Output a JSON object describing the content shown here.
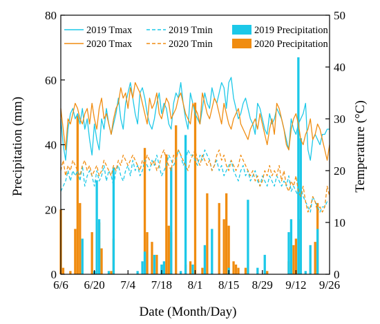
{
  "chart_data": {
    "type": "bar+line",
    "xlabel": "Date (Month/Day)",
    "ylabel_left": "Precipitation (mm)",
    "ylabel_right": "Temperature (°C)",
    "ylim_left": [
      0,
      80
    ],
    "ylim_right": [
      0,
      50
    ],
    "yticks_left": [
      "0",
      "20",
      "40",
      "60",
      "80"
    ],
    "yticks_right": [
      "0",
      "10",
      "20",
      "30",
      "40",
      "50"
    ],
    "xlim": [
      0,
      112
    ],
    "xticks": [
      {
        "label": "6/6",
        "day": 0
      },
      {
        "label": "6/20",
        "day": 14
      },
      {
        "label": "7/4",
        "day": 28
      },
      {
        "label": "7/18",
        "day": 42
      },
      {
        "label": "8/1",
        "day": 56
      },
      {
        "label": "8/15",
        "day": 70
      },
      {
        "label": "8/29",
        "day": 84
      },
      {
        "label": "9/12",
        "day": 98
      },
      {
        "label": "9/26",
        "day": 112
      }
    ],
    "grid": false,
    "legend_position": "top",
    "colors": {
      "2019": "#1cc8e8",
      "2020": "#f08c10"
    },
    "legend": [
      {
        "label": "2019 Tmax",
        "kind": "line",
        "year": "2019",
        "dash": false
      },
      {
        "label": "2019 Tmin",
        "kind": "line",
        "year": "2019",
        "dash": true
      },
      {
        "label": "2019 Precipitation",
        "kind": "bar",
        "year": "2019"
      },
      {
        "label": "2020 Tmax",
        "kind": "line",
        "year": "2020",
        "dash": false
      },
      {
        "label": "2020 Tmin",
        "kind": "line",
        "year": "2020",
        "dash": true
      },
      {
        "label": "2020 Precipitation",
        "kind": "bar",
        "year": "2020"
      }
    ],
    "precipitation_2019": [
      {
        "day": 9,
        "value": 11
      },
      {
        "day": 14,
        "value": 1
      },
      {
        "day": 15,
        "value": 29
      },
      {
        "day": 16,
        "value": 17
      },
      {
        "day": 20,
        "value": 1
      },
      {
        "day": 22,
        "value": 33
      },
      {
        "day": 32,
        "value": 1
      },
      {
        "day": 34,
        "value": 4
      },
      {
        "day": 35,
        "value": 7
      },
      {
        "day": 39,
        "value": 6
      },
      {
        "day": 42,
        "value": 3
      },
      {
        "day": 43,
        "value": 4
      },
      {
        "day": 46,
        "value": 33
      },
      {
        "day": 50,
        "value": 1
      },
      {
        "day": 52,
        "value": 43
      },
      {
        "day": 55,
        "value": 3
      },
      {
        "day": 60,
        "value": 9
      },
      {
        "day": 63,
        "value": 14
      },
      {
        "day": 70,
        "value": 2
      },
      {
        "day": 78,
        "value": 23
      },
      {
        "day": 82,
        "value": 2
      },
      {
        "day": 85,
        "value": 6
      },
      {
        "day": 95,
        "value": 13
      },
      {
        "day": 96,
        "value": 17
      },
      {
        "day": 99,
        "value": 67
      },
      {
        "day": 100,
        "value": 42
      },
      {
        "day": 102,
        "value": 1
      },
      {
        "day": 104,
        "value": 9
      },
      {
        "day": 107,
        "value": 14
      }
    ],
    "precipitation_2020": [
      {
        "day": 0,
        "value": 20
      },
      {
        "day": 1,
        "value": 2
      },
      {
        "day": 4,
        "value": 1
      },
      {
        "day": 6,
        "value": 14
      },
      {
        "day": 7,
        "value": 49
      },
      {
        "day": 8,
        "value": 22
      },
      {
        "day": 13,
        "value": 13
      },
      {
        "day": 16,
        "value": 16
      },
      {
        "day": 17,
        "value": 8
      },
      {
        "day": 21,
        "value": 1
      },
      {
        "day": 22,
        "value": 11
      },
      {
        "day": 35,
        "value": 39
      },
      {
        "day": 36,
        "value": 13
      },
      {
        "day": 38,
        "value": 10
      },
      {
        "day": 40,
        "value": 6
      },
      {
        "day": 43,
        "value": 3
      },
      {
        "day": 44,
        "value": 37
      },
      {
        "day": 45,
        "value": 15
      },
      {
        "day": 46,
        "value": 13
      },
      {
        "day": 48,
        "value": 46
      },
      {
        "day": 52,
        "value": 3
      },
      {
        "day": 54,
        "value": 4
      },
      {
        "day": 56,
        "value": 53
      },
      {
        "day": 59,
        "value": 2
      },
      {
        "day": 61,
        "value": 25
      },
      {
        "day": 66,
        "value": 22
      },
      {
        "day": 68,
        "value": 17
      },
      {
        "day": 69,
        "value": 25
      },
      {
        "day": 70,
        "value": 15
      },
      {
        "day": 72,
        "value": 4
      },
      {
        "day": 73,
        "value": 3
      },
      {
        "day": 74,
        "value": 2
      },
      {
        "day": 77,
        "value": 2
      },
      {
        "day": 86,
        "value": 1
      },
      {
        "day": 95,
        "value": 4
      },
      {
        "day": 97,
        "value": 9
      },
      {
        "day": 98,
        "value": 11
      },
      {
        "day": 100,
        "value": 17
      },
      {
        "day": 106,
        "value": 10
      },
      {
        "day": 107,
        "value": 22
      }
    ],
    "tmax_2019": [
      30,
      25,
      22,
      28,
      31,
      32,
      30,
      31,
      29,
      32,
      28,
      30,
      26,
      23,
      29,
      26,
      24,
      30,
      28,
      32,
      29,
      27,
      29,
      31,
      34,
      30,
      28,
      33,
      35,
      37,
      34,
      31,
      29,
      35,
      36,
      34,
      31,
      29,
      28,
      30,
      33,
      35,
      31,
      33,
      32,
      29,
      28,
      33,
      35,
      34,
      37,
      33,
      30,
      28,
      35,
      33,
      31,
      30,
      29,
      32,
      35,
      33,
      32,
      36,
      34,
      33,
      35,
      37,
      36,
      32,
      37,
      38,
      34,
      32,
      30,
      31,
      33,
      34,
      32,
      30,
      29,
      27,
      33,
      32,
      30,
      28,
      27,
      31,
      29,
      30,
      32,
      31,
      30,
      28,
      26,
      24,
      30,
      28,
      27,
      29,
      30,
      31,
      33,
      24,
      22,
      26,
      27,
      26,
      25,
      27,
      27,
      28,
      28
    ],
    "tmin_2019": [
      16,
      17,
      18,
      20,
      18,
      20,
      19,
      20,
      18,
      21,
      17,
      19,
      20,
      19,
      17,
      20,
      18,
      19,
      21,
      18,
      20,
      19,
      17,
      20,
      21,
      19,
      18,
      20,
      21,
      19,
      22,
      20,
      21,
      19,
      20,
      22,
      21,
      20,
      22,
      21,
      23,
      21,
      19,
      20,
      21,
      23,
      22,
      21,
      22,
      24,
      23,
      21,
      22,
      24,
      23,
      23,
      22,
      21,
      23,
      22,
      24,
      23,
      22,
      20,
      21,
      22,
      20,
      21,
      19,
      20,
      21,
      22,
      20,
      19,
      18,
      20,
      21,
      19,
      20,
      18,
      19,
      20,
      18,
      17,
      19,
      18,
      17,
      19,
      18,
      17,
      19,
      18,
      17,
      18,
      17,
      19,
      16,
      17,
      16,
      15,
      17,
      15,
      14,
      13,
      12,
      15,
      14,
      13,
      12,
      13,
      13,
      14,
      14
    ],
    "tmax_2020": [
      32,
      28,
      24,
      30,
      29,
      31,
      33,
      32,
      30,
      29,
      31,
      32,
      29,
      33,
      30,
      28,
      32,
      34,
      30,
      31,
      29,
      27,
      30,
      32,
      33,
      36,
      34,
      35,
      32,
      36,
      34,
      37,
      36,
      35,
      33,
      31,
      29,
      34,
      32,
      33,
      35,
      31,
      30,
      32,
      34,
      33,
      30,
      31,
      32,
      34,
      35,
      33,
      31,
      30,
      29,
      33,
      32,
      31,
      29,
      35,
      33,
      31,
      30,
      32,
      34,
      33,
      31,
      29,
      33,
      31,
      29,
      28,
      30,
      31,
      32,
      29,
      28,
      27,
      26,
      28,
      29,
      30,
      28,
      31,
      29,
      27,
      25,
      28,
      30,
      27,
      33,
      32,
      30,
      28,
      25,
      24,
      28,
      30,
      31,
      29,
      26,
      25,
      27,
      28,
      30,
      26,
      27,
      29,
      28,
      26,
      24,
      22,
      25
    ],
    "tmin_2020": [
      20,
      22,
      19,
      21,
      20,
      22,
      21,
      20,
      19,
      21,
      22,
      20,
      21,
      19,
      20,
      21,
      19,
      20,
      22,
      21,
      20,
      19,
      21,
      20,
      22,
      21,
      23,
      22,
      21,
      22,
      23,
      22,
      21,
      20,
      22,
      21,
      23,
      22,
      21,
      22,
      20,
      21,
      23,
      24,
      22,
      21,
      20,
      23,
      22,
      24,
      23,
      22,
      21,
      20,
      22,
      23,
      24,
      22,
      21,
      23,
      22,
      21,
      22,
      20,
      21,
      23,
      24,
      22,
      23,
      21,
      20,
      22,
      21,
      20,
      21,
      23,
      22,
      21,
      20,
      19,
      20,
      18,
      19,
      17,
      18,
      20,
      19,
      21,
      19,
      20,
      19,
      21,
      18,
      20,
      17,
      16,
      18,
      17,
      19,
      16,
      15,
      17,
      14,
      12,
      13,
      15,
      14,
      12,
      13,
      12,
      13,
      17,
      15
    ]
  }
}
